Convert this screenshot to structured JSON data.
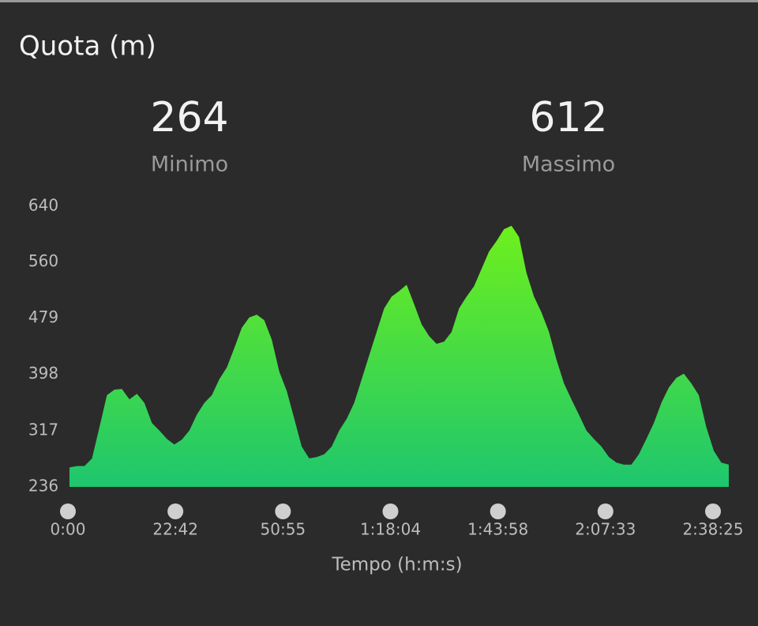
{
  "chart_data": {
    "type": "area",
    "title": "Quota (m)",
    "summary": [
      {
        "value": 264,
        "label": "Minimo"
      },
      {
        "value": 612,
        "label": "Massimo"
      }
    ],
    "x_label": "Tempo (h:m:s)",
    "xticks": [
      "0:00",
      "22:42",
      "50:55",
      "1:18:04",
      "1:43:58",
      "2:07:33",
      "2:38:25"
    ],
    "values": [
      264,
      266,
      266,
      277,
      322,
      368,
      376,
      377,
      362,
      370,
      357,
      328,
      317,
      305,
      297,
      304,
      317,
      340,
      357,
      368,
      391,
      408,
      436,
      465,
      480,
      484,
      476,
      448,
      402,
      374,
      334,
      294,
      277,
      279,
      283,
      294,
      317,
      334,
      357,
      391,
      425,
      459,
      493,
      510,
      518,
      527,
      499,
      470,
      453,
      442,
      445,
      459,
      493,
      510,
      525,
      550,
      575,
      590,
      607,
      612,
      596,
      544,
      510,
      487,
      459,
      419,
      385,
      362,
      340,
      317,
      305,
      294,
      279,
      271,
      268,
      268,
      283,
      305,
      328,
      357,
      379,
      393,
      399,
      385,
      368,
      322,
      288,
      271,
      268
    ],
    "color_top": "#6ef01c",
    "color_bottom": "#1ec66e",
    "ylim": [
      236,
      640
    ],
    "yticks": [
      236,
      317,
      398,
      479,
      560,
      640
    ]
  }
}
